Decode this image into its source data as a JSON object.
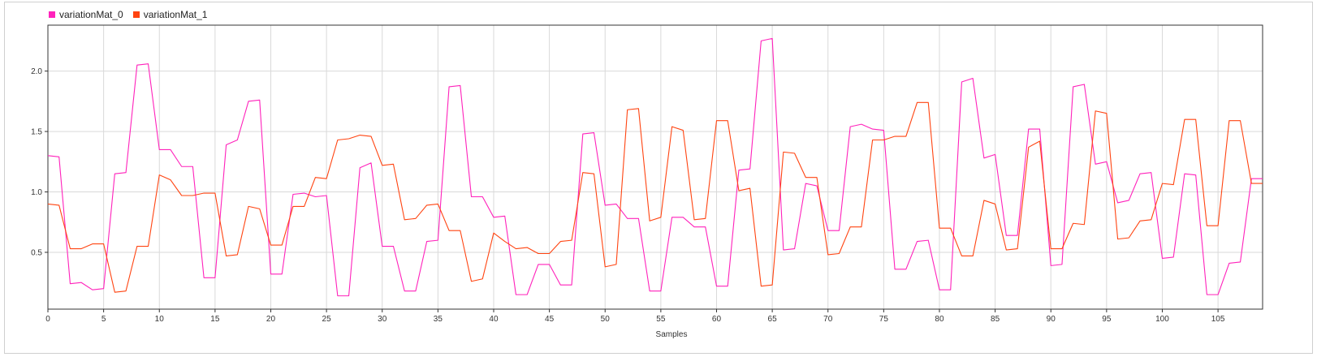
{
  "chart_data": {
    "type": "line",
    "xlabel": "Samples",
    "ylabel": "",
    "xlim": [
      0,
      109
    ],
    "ylim": [
      0.03,
      2.38
    ],
    "xticks": [
      0,
      5,
      10,
      15,
      20,
      25,
      30,
      35,
      40,
      45,
      50,
      55,
      60,
      65,
      70,
      75,
      80,
      85,
      90,
      95,
      100,
      105
    ],
    "yticks": [
      0.5,
      1.0,
      1.5,
      2.0
    ],
    "ytick_labels": [
      "0.5",
      "1.0",
      "1.5",
      "2.0"
    ],
    "grid": true,
    "legend_position": "top-left",
    "x": [
      0,
      1,
      2,
      3,
      4,
      5,
      6,
      7,
      8,
      9,
      10,
      11,
      12,
      13,
      14,
      15,
      16,
      17,
      18,
      19,
      20,
      21,
      22,
      23,
      24,
      25,
      26,
      27,
      28,
      29,
      30,
      31,
      32,
      33,
      34,
      35,
      36,
      37,
      38,
      39,
      40,
      41,
      42,
      43,
      44,
      45,
      46,
      47,
      48,
      49,
      50,
      51,
      52,
      53,
      54,
      55,
      56,
      57,
      58,
      59,
      60,
      61,
      62,
      63,
      64,
      65,
      66,
      67,
      68,
      69,
      70,
      71,
      72,
      73,
      74,
      75,
      76,
      77,
      78,
      79,
      80,
      81,
      82,
      83,
      84,
      85,
      86,
      87,
      88,
      89,
      90,
      91,
      92,
      93,
      94,
      95,
      96,
      97,
      98,
      99,
      100,
      101,
      102,
      103,
      104,
      105,
      106,
      107,
      108,
      109
    ],
    "series": [
      {
        "name": "variationMat_0",
        "color": "#ff22bb",
        "values": [
          1.3,
          1.29,
          0.24,
          0.25,
          0.19,
          0.2,
          1.15,
          1.16,
          2.05,
          2.06,
          1.35,
          1.35,
          1.21,
          1.21,
          0.29,
          0.29,
          1.39,
          1.43,
          1.75,
          1.76,
          0.32,
          0.32,
          0.98,
          0.99,
          0.96,
          0.97,
          0.14,
          0.14,
          1.2,
          1.24,
          0.55,
          0.55,
          0.18,
          0.18,
          0.59,
          0.6,
          1.87,
          1.88,
          0.96,
          0.96,
          0.79,
          0.8,
          0.15,
          0.15,
          0.4,
          0.4,
          0.23,
          0.23,
          1.48,
          1.49,
          0.89,
          0.9,
          0.78,
          0.78,
          0.18,
          0.18,
          0.79,
          0.79,
          0.71,
          0.71,
          0.22,
          0.22,
          1.18,
          1.19,
          2.25,
          2.27,
          0.52,
          0.53,
          1.07,
          1.05,
          0.68,
          0.68,
          1.54,
          1.56,
          1.52,
          1.51,
          0.36,
          0.36,
          0.59,
          0.6,
          0.19,
          0.19,
          1.91,
          1.94,
          1.28,
          1.31,
          0.64,
          0.64,
          1.52,
          1.52,
          0.39,
          0.4,
          1.87,
          1.89,
          1.23,
          1.25,
          0.91,
          0.93,
          1.15,
          1.16,
          0.45,
          0.46,
          1.15,
          1.14,
          0.15,
          0.15,
          0.41,
          0.42,
          1.11,
          1.11
        ]
      },
      {
        "name": "variationMat_1",
        "color": "#ff4411",
        "values": [
          0.9,
          0.89,
          0.53,
          0.53,
          0.57,
          0.57,
          0.17,
          0.18,
          0.55,
          0.55,
          1.14,
          1.1,
          0.97,
          0.97,
          0.99,
          0.99,
          0.47,
          0.48,
          0.88,
          0.86,
          0.56,
          0.56,
          0.88,
          0.88,
          1.12,
          1.11,
          1.43,
          1.44,
          1.47,
          1.46,
          1.22,
          1.23,
          0.77,
          0.78,
          0.89,
          0.9,
          0.68,
          0.68,
          0.26,
          0.28,
          0.66,
          0.59,
          0.53,
          0.54,
          0.49,
          0.49,
          0.59,
          0.6,
          1.16,
          1.15,
          0.38,
          0.4,
          1.68,
          1.69,
          0.76,
          0.79,
          1.54,
          1.51,
          0.77,
          0.78,
          1.59,
          1.59,
          1.01,
          1.03,
          0.22,
          0.23,
          1.33,
          1.32,
          1.12,
          1.12,
          0.48,
          0.49,
          0.71,
          0.71,
          1.43,
          1.43,
          1.46,
          1.46,
          1.74,
          1.74,
          0.7,
          0.7,
          0.47,
          0.47,
          0.93,
          0.9,
          0.52,
          0.53,
          1.37,
          1.42,
          0.53,
          0.53,
          0.74,
          0.73,
          1.67,
          1.65,
          0.61,
          0.62,
          0.76,
          0.77,
          1.07,
          1.06,
          1.6,
          1.6,
          0.72,
          0.72,
          1.59,
          1.59,
          1.07,
          1.07
        ]
      }
    ]
  }
}
